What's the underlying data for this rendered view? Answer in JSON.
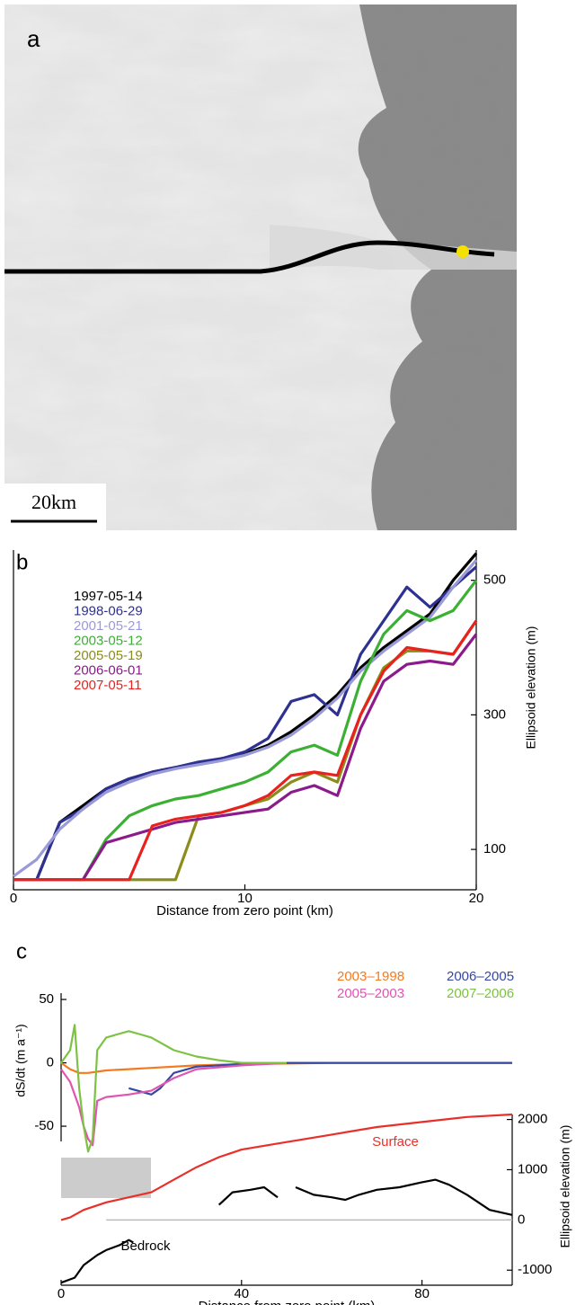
{
  "image_panel": {
    "label": "a",
    "scale_bar": "20km"
  },
  "chart_data": [
    {
      "type": "line",
      "label": "b",
      "ylabel": "Ellipsoid elevation (m)",
      "xlabel": "Distance from zero point (km)",
      "xlim": [
        0,
        20
      ],
      "xticks": [
        0,
        10,
        20
      ],
      "ylim": [
        40,
        545
      ],
      "yticks": [
        100,
        300,
        500
      ],
      "x": [
        0,
        1,
        2,
        3,
        4,
        5,
        6,
        7,
        8,
        9,
        10,
        11,
        12,
        13,
        14,
        15,
        16,
        17,
        18,
        19,
        20
      ],
      "series": [
        {
          "name": "1997-05-14",
          "color": "#000000",
          "values": [
            55,
            55,
            140,
            165,
            190,
            205,
            215,
            222,
            228,
            235,
            242,
            255,
            275,
            300,
            330,
            370,
            400,
            425,
            450,
            500,
            540
          ]
        },
        {
          "name": "1998-06-29",
          "color": "#2e3192",
          "values": [
            55,
            55,
            140,
            160,
            190,
            205,
            215,
            222,
            230,
            235,
            245,
            265,
            320,
            330,
            300,
            390,
            440,
            490,
            460,
            490,
            520
          ]
        },
        {
          "name": "2001-05-21",
          "color": "#9a9ad8",
          "values": [
            60,
            85,
            130,
            160,
            185,
            200,
            212,
            220,
            226,
            232,
            240,
            252,
            270,
            295,
            325,
            365,
            395,
            420,
            445,
            490,
            530
          ]
        },
        {
          "name": "2003-05-12",
          "color": "#3cb034",
          "values": [
            55,
            55,
            55,
            55,
            115,
            150,
            165,
            175,
            180,
            190,
            200,
            215,
            245,
            255,
            240,
            350,
            420,
            455,
            440,
            455,
            500
          ]
        },
        {
          "name": "2005-05-19",
          "color": "#8c8c1a",
          "values": [
            55,
            55,
            55,
            55,
            55,
            55,
            55,
            55,
            150,
            155,
            165,
            175,
            200,
            215,
            200,
            300,
            370,
            395,
            395,
            390,
            440
          ]
        },
        {
          "name": "2006-06-01",
          "color": "#8b1a8b",
          "values": [
            55,
            55,
            55,
            55,
            110,
            120,
            130,
            140,
            145,
            150,
            155,
            160,
            185,
            195,
            180,
            280,
            350,
            375,
            380,
            375,
            420
          ]
        },
        {
          "name": "2007-05-11",
          "color": "#e8231f",
          "values": [
            55,
            55,
            55,
            55,
            55,
            55,
            135,
            145,
            150,
            155,
            165,
            180,
            210,
            215,
            210,
            300,
            365,
            400,
            395,
            390,
            440
          ]
        }
      ]
    },
    {
      "type": "line",
      "label": "c",
      "ylabel": "dS/dt (m a⁻¹)",
      "y2label": "Ellipsoid elevation (m)",
      "xlabel": "Distance from zero point (km)",
      "xlim": [
        0,
        100
      ],
      "xticks": [
        0,
        40,
        80
      ],
      "ylim": [
        -62,
        55
      ],
      "yticks": [
        50,
        0,
        -50
      ],
      "y2lim": [
        -1300,
        2100
      ],
      "y2ticks": [
        2000,
        1000,
        0,
        -1000
      ],
      "annotations": [
        "Surface",
        "Bedrock"
      ],
      "series": [
        {
          "name": "2003–1998",
          "color": "#f47a20",
          "x": [
            0,
            2,
            4,
            6,
            8,
            10,
            15,
            20,
            30,
            40,
            60,
            80,
            100
          ],
          "values": [
            0,
            -5,
            -8,
            -8,
            -7,
            -6,
            -5,
            -4,
            -2,
            -1,
            0,
            0,
            0
          ]
        },
        {
          "name": "2006–2005",
          "color": "#3748a0",
          "x": [
            15,
            20,
            22,
            25,
            30,
            40,
            50,
            60,
            70,
            80,
            90,
            100
          ],
          "values": [
            -20,
            -25,
            -20,
            -8,
            -3,
            -1,
            0,
            0,
            0,
            0,
            0,
            0
          ]
        },
        {
          "name": "2005–2003",
          "color": "#e055b0",
          "x": [
            0,
            2,
            4,
            5,
            6,
            7,
            8,
            10,
            15,
            20,
            25,
            30,
            40,
            50
          ],
          "values": [
            -5,
            -15,
            -35,
            -50,
            -60,
            -65,
            -30,
            -27,
            -25,
            -22,
            -12,
            -5,
            -2,
            0
          ]
        },
        {
          "name": "2007–2006",
          "color": "#7dc242",
          "x": [
            0,
            2,
            3,
            4,
            5,
            6,
            7,
            8,
            10,
            12,
            15,
            18,
            20,
            25,
            30,
            35,
            40,
            50
          ],
          "values": [
            0,
            10,
            30,
            -20,
            -50,
            -70,
            -60,
            10,
            20,
            22,
            25,
            22,
            20,
            10,
            5,
            2,
            0,
            0
          ]
        },
        {
          "color": "#e8302a",
          "axis": "y2",
          "x": [
            0,
            2,
            5,
            10,
            15,
            20,
            25,
            30,
            35,
            40,
            50,
            60,
            70,
            80,
            90,
            100
          ],
          "values": [
            0,
            50,
            200,
            350,
            450,
            550,
            800,
            1050,
            1250,
            1400,
            1550,
            1700,
            1850,
            1950,
            2050,
            2100
          ]
        },
        {
          "color": "#000000",
          "axis": "y2",
          "x": [
            0,
            3,
            5,
            8,
            10,
            13,
            15,
            16,
            25,
            35,
            38,
            42,
            45,
            48,
            50,
            52,
            56,
            60,
            63,
            66,
            70,
            75,
            80,
            83,
            86,
            90,
            95,
            100
          ],
          "values": [
            -1250,
            -1150,
            -900,
            -700,
            -600,
            -500,
            -400,
            -450,
            null,
            300,
            550,
            600,
            650,
            450,
            null,
            650,
            500,
            450,
            400,
            500,
            600,
            650,
            750,
            800,
            700,
            500,
            200,
            100
          ]
        }
      ]
    }
  ]
}
